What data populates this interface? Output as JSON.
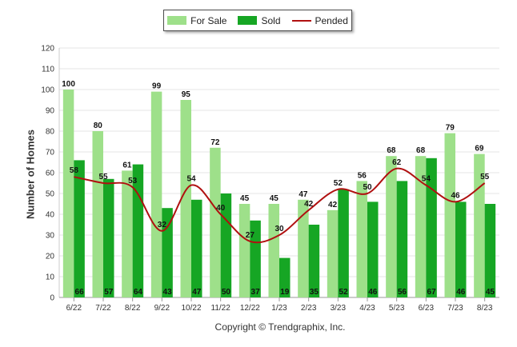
{
  "legend": {
    "for_sale": "For Sale",
    "sold": "Sold",
    "pended": "Pended"
  },
  "copyright": "Copyright © Trendgraphix, Inc.",
  "colors": {
    "for_sale": "#9ee08a",
    "sold": "#16a624",
    "pended": "#b01010",
    "grid": "#e6e6e6"
  },
  "chart_data": {
    "type": "bar",
    "title": "",
    "xlabel": "",
    "ylabel": "Number of Homes",
    "ylim": [
      0,
      120
    ],
    "yticks": [
      0,
      10,
      20,
      30,
      40,
      50,
      60,
      70,
      80,
      90,
      100,
      110,
      120
    ],
    "grid": true,
    "legend_position": "top-center",
    "categories": [
      "6/22",
      "7/22",
      "8/22",
      "9/22",
      "10/22",
      "11/22",
      "12/22",
      "1/23",
      "2/23",
      "3/23",
      "4/23",
      "5/23",
      "6/23",
      "7/23",
      "8/23"
    ],
    "series": [
      {
        "name": "For Sale",
        "type": "bar",
        "values": [
          100,
          80,
          61,
          99,
          95,
          72,
          45,
          45,
          47,
          42,
          56,
          68,
          68,
          79,
          69
        ]
      },
      {
        "name": "Sold",
        "type": "bar",
        "values": [
          66,
          57,
          64,
          43,
          47,
          50,
          37,
          19,
          35,
          52,
          46,
          56,
          67,
          46,
          45
        ]
      },
      {
        "name": "Pended",
        "type": "line",
        "values": [
          58,
          55,
          53,
          32,
          54,
          40,
          27,
          30,
          42,
          52,
          50,
          62,
          54,
          46,
          55
        ]
      }
    ]
  }
}
